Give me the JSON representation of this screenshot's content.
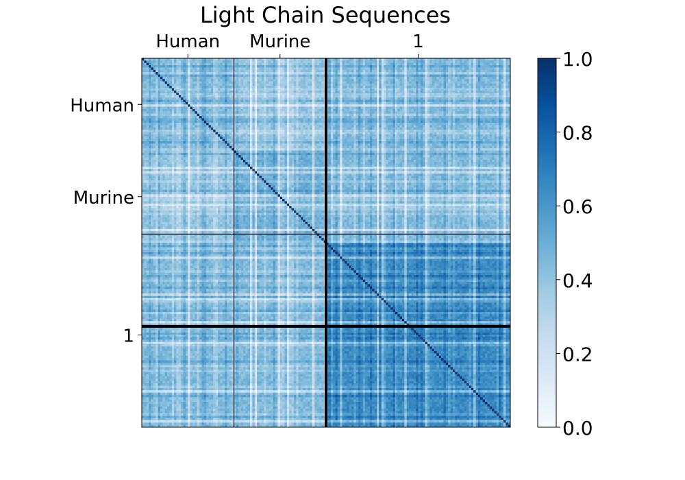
{
  "chart_data": {
    "type": "heatmap",
    "title": "Light Chain Sequences",
    "groups": [
      {
        "label": "Human",
        "fraction": 0.25
      },
      {
        "label": "Murine",
        "fraction": 0.25
      },
      {
        "label": "1",
        "fraction": 0.5
      }
    ],
    "block_similarity_mean": [
      [
        0.45,
        0.4,
        0.45
      ],
      [
        0.4,
        0.5,
        0.45
      ],
      [
        0.45,
        0.45,
        0.65
      ]
    ],
    "diagonal_value": 1.0,
    "value_range": [
      0.0,
      1.0
    ],
    "colormap": "Blues",
    "colorbar": {
      "ticks": [
        "0.0",
        "0.2",
        "0.4",
        "0.6",
        "0.8",
        "1.0"
      ],
      "tick_values": [
        0.0,
        0.2,
        0.4,
        0.6,
        0.8,
        1.0
      ]
    },
    "x_tick_position": "top",
    "group_separators": true
  }
}
